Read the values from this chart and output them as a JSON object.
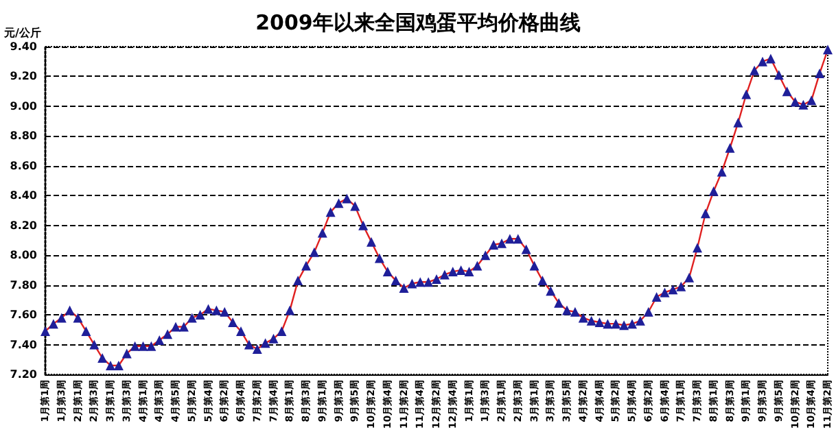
{
  "chart_data": {
    "type": "line",
    "title": "2009年以来全国鸡蛋平均价格曲线",
    "ylabel": "元/公斤",
    "categories": [
      "1月第1周",
      null,
      "1月第3周",
      null,
      "2月第1周",
      null,
      "2月第3周",
      null,
      "3月第1周",
      null,
      "3月第3周",
      null,
      "4月第1周",
      null,
      "4月第3周",
      null,
      "4月第5周",
      null,
      "5月第2周",
      null,
      "5月第4周",
      null,
      "6月第2周",
      null,
      "6月第4周",
      null,
      "7月第2周",
      null,
      "7月第4周",
      null,
      "8月第1周",
      null,
      "8月第3周",
      null,
      "9月第1周",
      null,
      "9月第3周",
      null,
      "9月第5周",
      null,
      "10月第2周",
      null,
      "10月第4周",
      null,
      "11月第2周",
      null,
      "11月第4周",
      null,
      "12月第2周",
      null,
      "12月第4周",
      null,
      "1月第1周",
      null,
      "1月第3周",
      null,
      "2月第1周",
      null,
      "2月第3周",
      null,
      "3月第1周",
      null,
      "3月第3周",
      null,
      "3月第5周",
      null,
      "4月第2周",
      null,
      "4月第4周",
      null,
      "5月第2周",
      null,
      "5月第4周",
      null,
      "6月第2周",
      null,
      "6月第4周",
      null,
      "7月第1周",
      null,
      "7月第3周",
      null,
      "8月第1周",
      null,
      "8月第3周",
      null,
      "9月第1周",
      null,
      "9月第3周",
      null,
      "9月第5周",
      null,
      "10月第2周",
      null,
      "10月第4周",
      null,
      "11月第2周"
    ],
    "series": [
      {
        "color": "#e02020",
        "values": [
          7.49,
          7.54,
          7.58,
          7.63,
          7.58,
          7.49,
          7.4,
          7.31,
          7.26,
          7.26,
          7.34,
          7.39,
          7.39,
          7.39,
          7.43,
          7.47,
          7.52,
          7.52,
          7.58,
          7.6,
          7.64,
          7.63,
          7.62,
          7.55,
          7.49,
          7.4,
          7.37,
          7.41,
          7.44,
          7.49,
          7.63,
          7.83,
          7.93,
          8.02,
          8.15,
          8.29,
          8.35,
          8.38,
          8.33,
          8.2,
          8.09,
          7.98,
          7.89,
          7.83,
          7.78,
          7.81,
          7.82,
          7.82,
          7.84,
          7.87,
          7.89,
          7.9,
          7.89,
          7.93,
          8.0,
          8.07,
          8.08,
          8.11,
          8.11,
          8.04,
          7.93,
          7.83,
          7.76,
          7.68,
          7.63,
          7.62,
          7.58,
          7.56,
          7.55,
          7.54,
          7.54,
          7.53,
          7.54,
          7.56,
          7.62,
          7.72,
          7.75,
          7.77,
          7.79,
          7.85,
          8.05,
          8.28,
          8.43,
          8.56,
          8.72,
          8.89,
          9.08,
          9.24,
          9.3,
          9.32,
          9.21,
          9.1,
          9.03,
          9.01,
          9.04,
          9.22,
          9.38
        ]
      }
    ],
    "ylim": [
      7.2,
      9.4
    ],
    "yticks": [
      {
        "value": 7.2,
        "label": "7.20"
      },
      {
        "value": 7.4,
        "label": "7.40"
      },
      {
        "value": 7.6,
        "label": "7.60"
      },
      {
        "value": 7.8,
        "label": "7.80"
      },
      {
        "value": 8.0,
        "label": "8.00"
      },
      {
        "value": 8.2,
        "label": "8.20"
      },
      {
        "value": 8.4,
        "label": "8.40"
      },
      {
        "value": 8.6,
        "label": "8.60"
      },
      {
        "value": 8.8,
        "label": "8.80"
      },
      {
        "value": 9.0,
        "label": "9.00"
      },
      {
        "value": 9.2,
        "label": "9.20"
      },
      {
        "value": 9.4,
        "label": "9.40"
      }
    ],
    "grid": "y",
    "marker": "triangle",
    "line_style": "solid"
  }
}
